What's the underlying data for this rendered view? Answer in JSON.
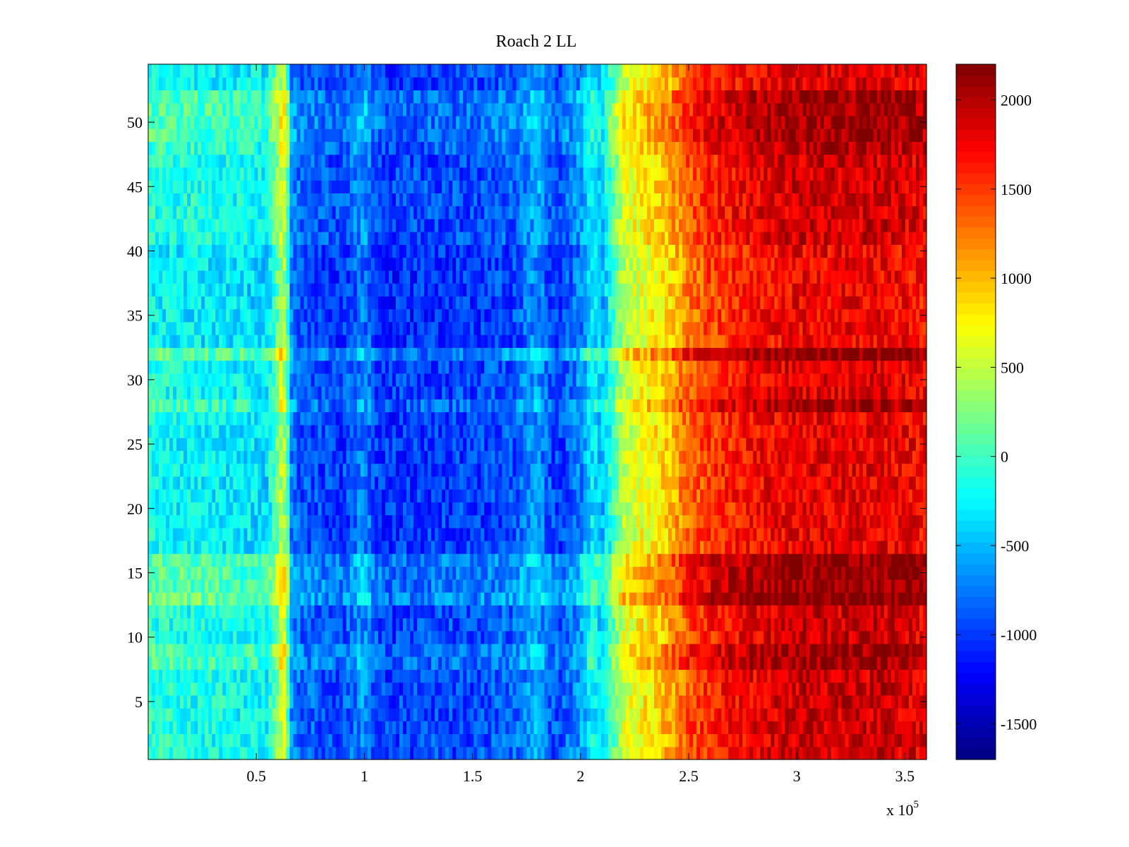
{
  "chart_data": {
    "type": "heatmap",
    "title": "Roach 2 LL",
    "xlabel": "",
    "ylabel": "",
    "x_multiplier_label": "x 10",
    "x_multiplier_exponent": "5",
    "xlim": [
      0,
      360000
    ],
    "ylim": [
      0.5,
      54.5
    ],
    "x_ticks": [
      {
        "value": 50000,
        "label": "0.5"
      },
      {
        "value": 100000,
        "label": "1"
      },
      {
        "value": 150000,
        "label": "1.5"
      },
      {
        "value": 200000,
        "label": "2"
      },
      {
        "value": 250000,
        "label": "2.5"
      },
      {
        "value": 300000,
        "label": "3"
      },
      {
        "value": 350000,
        "label": "3.5"
      }
    ],
    "y_ticks": [
      {
        "value": 5,
        "label": "5"
      },
      {
        "value": 10,
        "label": "10"
      },
      {
        "value": 15,
        "label": "15"
      },
      {
        "value": 20,
        "label": "20"
      },
      {
        "value": 25,
        "label": "25"
      },
      {
        "value": 30,
        "label": "30"
      },
      {
        "value": 35,
        "label": "35"
      },
      {
        "value": 40,
        "label": "40"
      },
      {
        "value": 45,
        "label": "45"
      },
      {
        "value": 50,
        "label": "50"
      }
    ],
    "colorbar": {
      "colormap": "jet",
      "clim": [
        -1700,
        2200
      ],
      "ticks": [
        {
          "value": -1500,
          "label": "-1500"
        },
        {
          "value": -1000,
          "label": "-1000"
        },
        {
          "value": -500,
          "label": "-500"
        },
        {
          "value": 0,
          "label": "0"
        },
        {
          "value": 500,
          "label": "500"
        },
        {
          "value": 1000,
          "label": "1000"
        },
        {
          "value": 1500,
          "label": "1500"
        },
        {
          "value": 2000,
          "label": "2000"
        }
      ]
    },
    "rows": 54,
    "x_profile": {
      "x": [
        0,
        20000,
        40000,
        55000,
        60000,
        62000,
        64000,
        66000,
        70000,
        90000,
        100000,
        105000,
        110000,
        130000,
        150000,
        170000,
        180000,
        185000,
        190000,
        200000,
        205000,
        210000,
        215000,
        220000,
        230000,
        240000,
        250000,
        260000,
        280000,
        300000,
        320000,
        340000,
        360000
      ],
      "values": [
        -200,
        -250,
        -300,
        -350,
        200,
        500,
        300,
        -700,
        -900,
        -1000,
        -700,
        -950,
        -1050,
        -1000,
        -1000,
        -900,
        -600,
        -900,
        -1000,
        -700,
        -300,
        -500,
        0,
        500,
        700,
        900,
        1300,
        1500,
        1700,
        1800,
        1800,
        1800,
        1700
      ]
    },
    "row_offsets": [
      {
        "rows": [
          1,
          2,
          3,
          4,
          5,
          6,
          7
        ],
        "value": 100
      },
      {
        "rows": [
          8,
          9
        ],
        "value": 300
      },
      {
        "rows": [
          10,
          11,
          12
        ],
        "value": 100
      },
      {
        "rows": [
          13
        ],
        "value": 450
      },
      {
        "rows": [
          14,
          15,
          16
        ],
        "value": 350
      },
      {
        "rows": [
          17,
          18,
          19,
          20,
          21,
          22,
          23,
          24,
          25,
          26,
          27
        ],
        "value": 0
      },
      {
        "rows": [
          28
        ],
        "value": 250
      },
      {
        "rows": [
          29,
          30,
          31
        ],
        "value": 50
      },
      {
        "rows": [
          32
        ],
        "value": 400
      },
      {
        "rows": [
          33,
          34,
          35,
          36,
          37,
          38,
          39,
          40
        ],
        "value": -50
      },
      {
        "rows": [
          41,
          42,
          43,
          44,
          45,
          46,
          47
        ],
        "value": 100
      },
      {
        "rows": [
          48
        ],
        "value": 200
      },
      {
        "rows": [
          49,
          50,
          51,
          52
        ],
        "value": 300
      },
      {
        "rows": [
          53,
          54
        ],
        "value": 50
      }
    ]
  }
}
